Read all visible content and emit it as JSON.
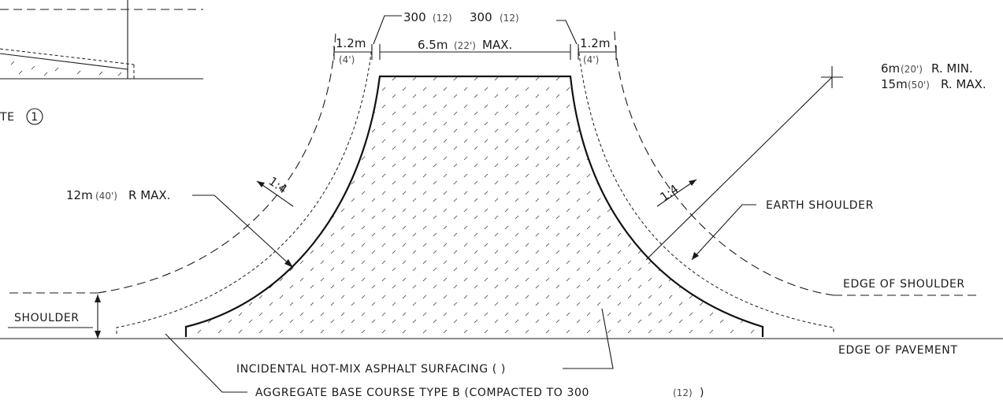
{
  "labels": {
    "note_fragment": "TE",
    "note_number": "1",
    "dim_300_left_a": "300",
    "dim_300_left_b": "(12)",
    "dim_300_right_a": "300",
    "dim_300_right_b": "(12)",
    "dim_left_shoulder_m": "1.2m",
    "dim_left_shoulder_ft": "(4')",
    "dim_right_shoulder_m": "1.2m",
    "dim_right_shoulder_ft": "(4')",
    "dim_top_width_a": "6.5m",
    "dim_top_width_b": "(22')",
    "dim_top_width_c": "MAX.",
    "radius_min_a": "6m",
    "radius_min_b": "(20')",
    "radius_min_c": "R. MIN.",
    "radius_max_a": "15m",
    "radius_max_b": "(50')",
    "radius_max_c": "R. MAX.",
    "left_radius_a": "12m",
    "left_radius_b": "(40')",
    "left_radius_c": "R MAX.",
    "slope_left": "1:4",
    "slope_right": "1:4",
    "earth_shoulder": "EARTH SHOULDER",
    "edge_of_shoulder": "EDGE OF SHOULDER",
    "shoulder": "SHOULDER",
    "edge_of_pavement": "EDGE OF PAVEMENT",
    "incidental_surfacing": "INCIDENTAL HOT-MIX ASPHALT SURFACING (   )",
    "aggregate_base_a": "AGGREGATE BASE COURSE TYPE B (COMPACTED TO 300",
    "aggregate_base_b": "(12)",
    "aggregate_base_c": ")"
  }
}
